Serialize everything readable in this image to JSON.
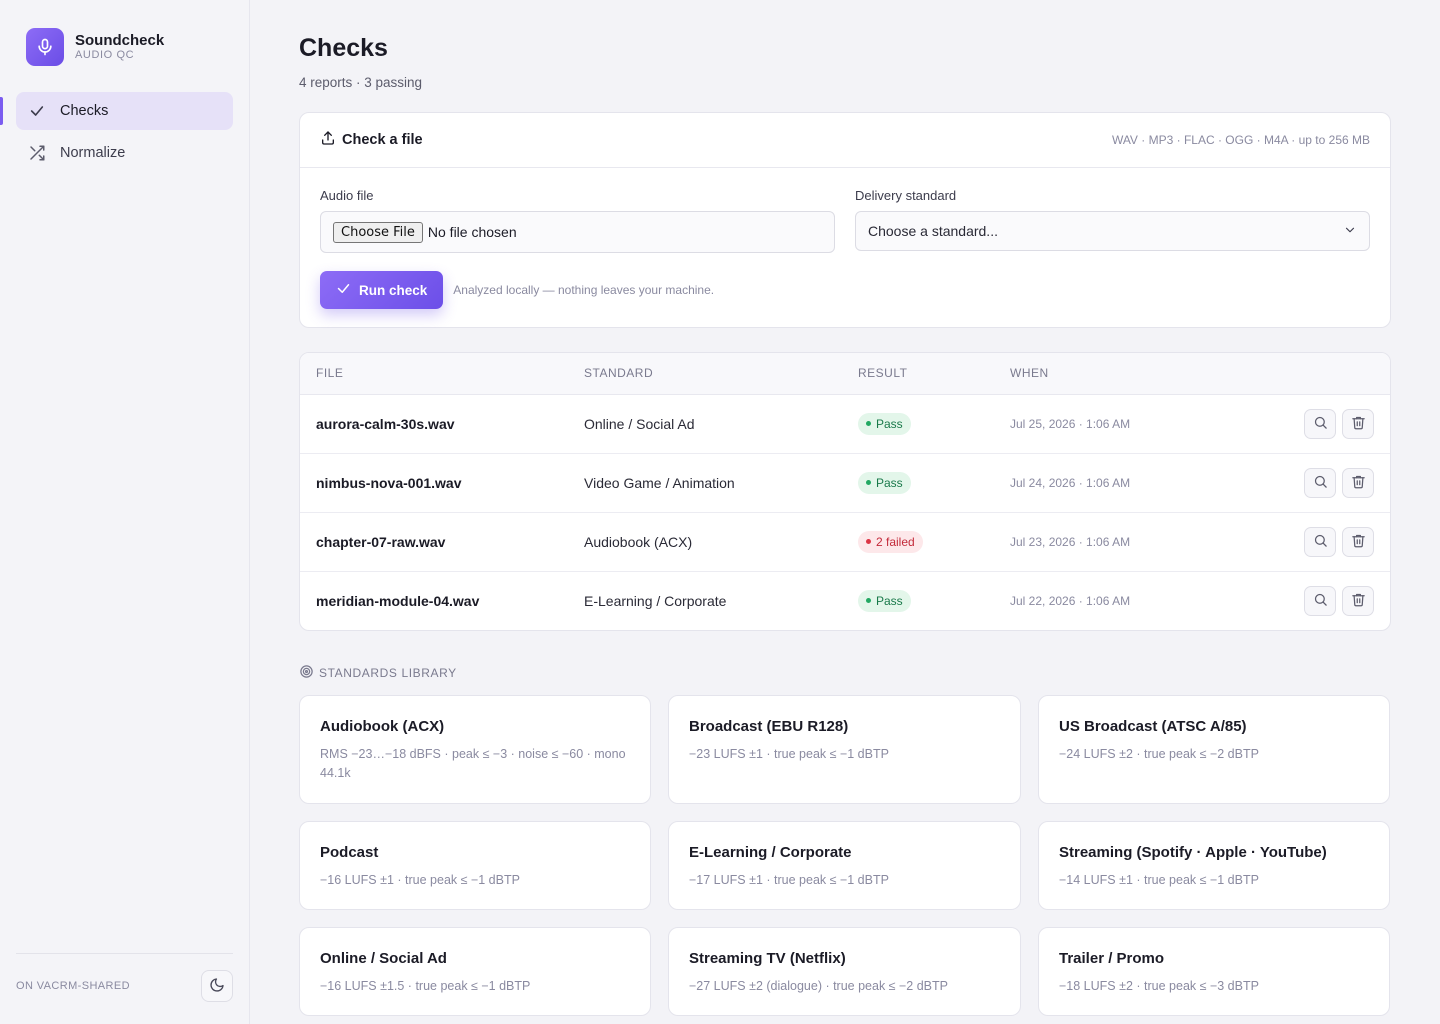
{
  "app": {
    "name": "Soundcheck",
    "subtitle": "AUDIO QC",
    "brand_color": "#7b5cf0"
  },
  "sidebar": {
    "items": [
      {
        "label": "Checks",
        "icon": "check-icon",
        "active": true
      },
      {
        "label": "Normalize",
        "icon": "shuffle-icon",
        "active": false
      }
    ],
    "footer_label": "ON VACRM-SHARED",
    "theme_icon": "moon-icon"
  },
  "page": {
    "title": "Checks",
    "subtitle": "4 reports · 3 passing"
  },
  "upload": {
    "title": "Check a file",
    "formats": "WAV · MP3 · FLAC · OGG · M4A · up to 256 MB",
    "file_label": "Audio file",
    "choose_button": "Choose File",
    "file_status": "No file chosen",
    "standard_label": "Delivery standard",
    "standard_value": "Choose a standard...",
    "run_button": "Run check",
    "hint": "Analyzed locally — nothing leaves your machine."
  },
  "table": {
    "headers": {
      "file": "FILE",
      "standard": "STANDARD",
      "result": "RESULT",
      "when": "WHEN"
    },
    "rows": [
      {
        "file": "aurora-calm-30s.wav",
        "standard": "Online / Social Ad",
        "result": "Pass",
        "status": "pass",
        "when": "Jul 25, 2026 · 1:06 AM"
      },
      {
        "file": "nimbus-nova-001.wav",
        "standard": "Video Game / Animation",
        "result": "Pass",
        "status": "pass",
        "when": "Jul 24, 2026 · 1:06 AM"
      },
      {
        "file": "chapter-07-raw.wav",
        "standard": "Audiobook (ACX)",
        "result": "2 failed",
        "status": "fail",
        "when": "Jul 23, 2026 · 1:06 AM"
      },
      {
        "file": "meridian-module-04.wav",
        "standard": "E-Learning / Corporate",
        "result": "Pass",
        "status": "pass",
        "when": "Jul 22, 2026 · 1:06 AM"
      }
    ]
  },
  "library": {
    "title": "STANDARDS LIBRARY",
    "items": [
      {
        "name": "Audiobook (ACX)",
        "desc": "RMS −23…−18 dBFS · peak ≤ −3 · noise ≤ −60 · mono 44.1k"
      },
      {
        "name": "Broadcast (EBU R128)",
        "desc": "−23 LUFS ±1 · true peak ≤ −1 dBTP"
      },
      {
        "name": "US Broadcast (ATSC A/85)",
        "desc": "−24 LUFS ±2 · true peak ≤ −2 dBTP"
      },
      {
        "name": "Podcast",
        "desc": "−16 LUFS ±1 · true peak ≤ −1 dBTP"
      },
      {
        "name": "E-Learning / Corporate",
        "desc": "−17 LUFS ±1 · true peak ≤ −1 dBTP"
      },
      {
        "name": "Streaming (Spotify · Apple · YouTube)",
        "desc": "−14 LUFS ±1 · true peak ≤ −1 dBTP"
      },
      {
        "name": "Online / Social Ad",
        "desc": "−16 LUFS ±1.5 · true peak ≤ −1 dBTP"
      },
      {
        "name": "Streaming TV (Netflix)",
        "desc": "−27 LUFS ±2 (dialogue) · true peak ≤ −2 dBTP"
      },
      {
        "name": "Trailer / Promo",
        "desc": "−18 LUFS ±2 · true peak ≤ −3 dBTP"
      }
    ]
  }
}
